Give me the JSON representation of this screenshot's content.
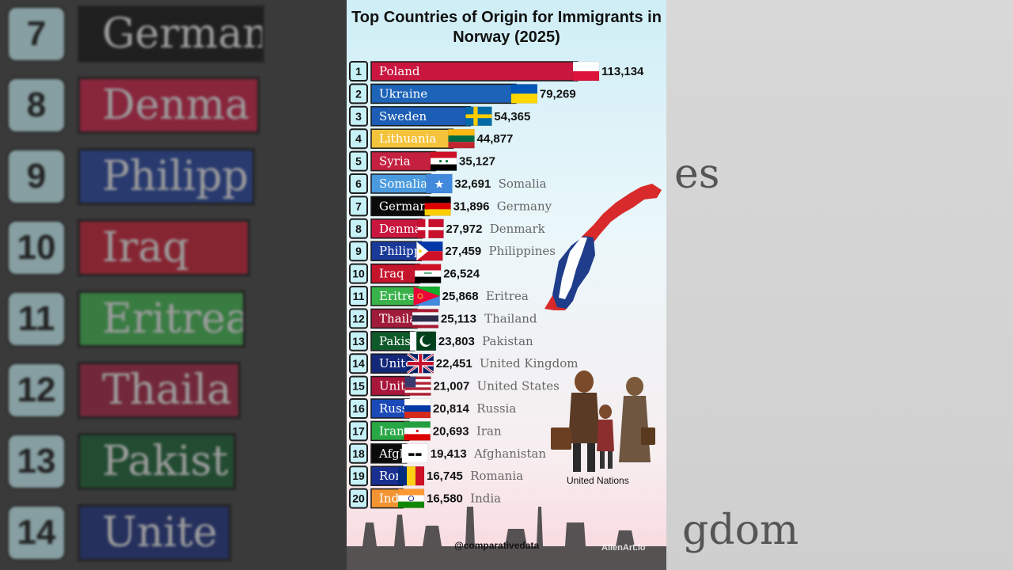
{
  "chart_data": {
    "type": "bar",
    "title": "Top Countries of Origin for Immigrants in Norway (2025)",
    "categories": [
      "Poland",
      "Ukraine",
      "Sweden",
      "Lithuania",
      "Syria",
      "Somalia",
      "Germany",
      "Denmark",
      "Philippines",
      "Iraq",
      "Eritrea",
      "Thailand",
      "Pakistan",
      "United Kingdom",
      "United States",
      "Russia",
      "Iran",
      "Afghanistan",
      "Romania",
      "India"
    ],
    "bar_labels": [
      "Poland",
      "Ukraine",
      "Sweden",
      "Lithuania",
      "Syria",
      "Somalia",
      "Germany",
      "Denma",
      "Philipp",
      "Iraq",
      "Eritrea",
      "Thaila",
      "Pakist",
      "Unite",
      "Unite",
      "Russi",
      "Iran",
      "Afgh",
      "Rom",
      "Indi"
    ],
    "ranks": [
      "1",
      "2",
      "3",
      "4",
      "5",
      "6",
      "7",
      "8",
      "9",
      "10",
      "11",
      "12",
      "13",
      "14",
      "15",
      "16",
      "17",
      "18",
      "19",
      "20"
    ],
    "values": [
      113134,
      79269,
      54365,
      44877,
      35127,
      32691,
      31896,
      27972,
      27459,
      26524,
      25868,
      25113,
      23803,
      22451,
      21007,
      20814,
      20693,
      19413,
      16745,
      16580
    ],
    "value_labels": [
      "113,134",
      "79,269",
      "54,365",
      "44,877",
      "35,127",
      "32,691",
      "31,896",
      "27,972",
      "27,459",
      "26,524",
      "25,868",
      "25,113",
      "23,803",
      "22,451",
      "21,007",
      "20,814",
      "20,693",
      "19,413",
      "16,745",
      "16,580"
    ],
    "name_labels": [
      "",
      "",
      "",
      "",
      "",
      "Somalia",
      "Germany",
      "Denmark",
      "Philippines",
      "",
      "Eritrea",
      "Thailand",
      "Pakistan",
      "United Kingdom",
      "United States",
      "Russia",
      "Iran",
      "Afghanistan",
      "Romania",
      "India"
    ],
    "colors": [
      "#c8163f",
      "#1d64b8",
      "#1c5db5",
      "#f5c33b",
      "#c4203f",
      "#4a9ae0",
      "#0a0a0a",
      "#c8163f",
      "#1a3a9a",
      "#c5152d",
      "#39b24a",
      "#a01b3a",
      "#0f5a2a",
      "#14287a",
      "#a8163a",
      "#1a4ab8",
      "#28a745",
      "#0a0a0a",
      "#1a3090",
      "#f29432"
    ],
    "bar_text_colors": [
      "#ffffff",
      "#ffffff",
      "#ffffff",
      "#1a1a1a",
      "#ffffff",
      "#ffffff",
      "#ffffff",
      "#ffffff",
      "#ffffff",
      "#ffffff",
      "#ffffff",
      "#ffffff",
      "#ffffff",
      "#ffffff",
      "#ffffff",
      "#ffffff",
      "#ffffff",
      "#ffffff",
      "#ffffff",
      "#ffffff"
    ],
    "flags": [
      "poland",
      "ukraine",
      "sweden",
      "lithuania",
      "syria",
      "somalia",
      "germany",
      "denmark",
      "philippines",
      "iraq",
      "eritrea",
      "thailand",
      "pakistan",
      "united-kingdom",
      "united-states",
      "russia",
      "iran",
      "afghanistan",
      "romania",
      "india"
    ]
  },
  "credit": "United Nations",
  "handle": "@comparativedata",
  "watermark": "AlienArt.io",
  "background": {
    "ranks": [
      "7",
      "8",
      "9",
      "10",
      "11",
      "12",
      "13",
      "14"
    ],
    "labels": [
      "Germany",
      "Denma",
      "Philipp",
      "Iraq",
      "Eritrea",
      "Thaila",
      "Pakist",
      "Unite"
    ],
    "colors": [
      "#0a0a0a",
      "#c8163f",
      "#1a3a9a",
      "#c5152d",
      "#39b24a",
      "#a01b3a",
      "#0f5a2a",
      "#14287a"
    ]
  }
}
